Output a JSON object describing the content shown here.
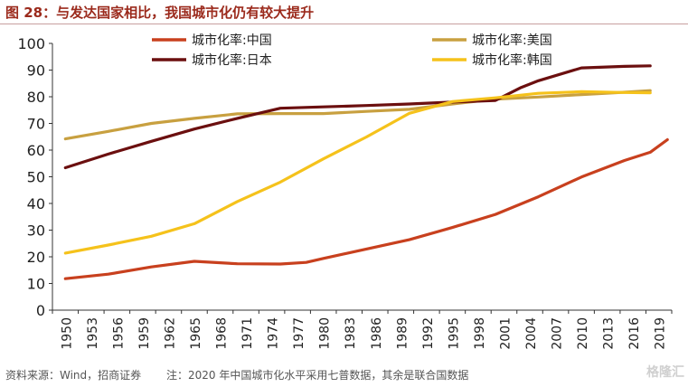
{
  "header": {
    "title": "图 28：与发达国家相比，我国城市化仍有较大提升"
  },
  "footer": {
    "source": "资料来源：Wind，招商证券",
    "note": "注：2020 年中国城市化水平采用七普数据，其余是联合国数据"
  },
  "watermark": "格隆汇",
  "chart_data": {
    "type": "line",
    "title": "",
    "xlabel": "",
    "ylabel": "",
    "ylim": [
      0,
      100
    ],
    "yticks": [
      0,
      10,
      20,
      30,
      40,
      50,
      60,
      70,
      80,
      90,
      100
    ],
    "xlim": [
      1950,
      2020
    ],
    "xticks": [
      1950,
      1953,
      1956,
      1959,
      1962,
      1965,
      1968,
      1971,
      1974,
      1977,
      1980,
      1983,
      1986,
      1989,
      1992,
      1995,
      1998,
      2001,
      2004,
      2007,
      2010,
      2013,
      2016,
      2019
    ],
    "grid": false,
    "legend": "top, two columns",
    "series": [
      {
        "name": "城市化率:中国",
        "color": "#c8401e",
        "points": [
          [
            1950,
            11.8
          ],
          [
            1955,
            13.5
          ],
          [
            1960,
            16.2
          ],
          [
            1965,
            18.3
          ],
          [
            1970,
            17.4
          ],
          [
            1975,
            17.3
          ],
          [
            1978,
            17.9
          ],
          [
            1980,
            19.4
          ],
          [
            1985,
            22.9
          ],
          [
            1990,
            26.4
          ],
          [
            1995,
            31
          ],
          [
            2000,
            35.9
          ],
          [
            2005,
            42.5
          ],
          [
            2010,
            49.9
          ],
          [
            2015,
            56.1
          ],
          [
            2018,
            59.2
          ],
          [
            2020,
            63.9
          ]
        ]
      },
      {
        "name": "城市化率:美国",
        "color": "#c8a040",
        "points": [
          [
            1950,
            64.2
          ],
          [
            1955,
            67
          ],
          [
            1960,
            70
          ],
          [
            1965,
            71.9
          ],
          [
            1970,
            73.6
          ],
          [
            1975,
            73.7
          ],
          [
            1980,
            73.7
          ],
          [
            1985,
            74.5
          ],
          [
            1990,
            75.3
          ],
          [
            1995,
            77.3
          ],
          [
            2000,
            79.1
          ],
          [
            2005,
            79.9
          ],
          [
            2010,
            80.8
          ],
          [
            2015,
            81.7
          ],
          [
            2018,
            82.3
          ]
        ]
      },
      {
        "name": "城市化率:日本",
        "color": "#6b0f0f",
        "points": [
          [
            1950,
            53.4
          ],
          [
            1955,
            58.5
          ],
          [
            1960,
            63.3
          ],
          [
            1965,
            67.9
          ],
          [
            1970,
            71.9
          ],
          [
            1975,
            75.7
          ],
          [
            1980,
            76.2
          ],
          [
            1985,
            76.7
          ],
          [
            1990,
            77.3
          ],
          [
            1995,
            78
          ],
          [
            2000,
            78.6
          ],
          [
            2003,
            83.5
          ],
          [
            2005,
            86
          ],
          [
            2010,
            90.8
          ],
          [
            2015,
            91.4
          ],
          [
            2018,
            91.6
          ]
        ]
      },
      {
        "name": "城市化率:韩国",
        "color": "#f5c21b",
        "points": [
          [
            1950,
            21.4
          ],
          [
            1955,
            24.4
          ],
          [
            1960,
            27.7
          ],
          [
            1965,
            32.4
          ],
          [
            1970,
            40.7
          ],
          [
            1975,
            48
          ],
          [
            1980,
            56.7
          ],
          [
            1985,
            64.9
          ],
          [
            1990,
            73.8
          ],
          [
            1995,
            78.2
          ],
          [
            2000,
            79.6
          ],
          [
            2005,
            81.3
          ],
          [
            2010,
            81.9
          ],
          [
            2015,
            81.6
          ],
          [
            2018,
            81.5
          ]
        ]
      }
    ]
  }
}
